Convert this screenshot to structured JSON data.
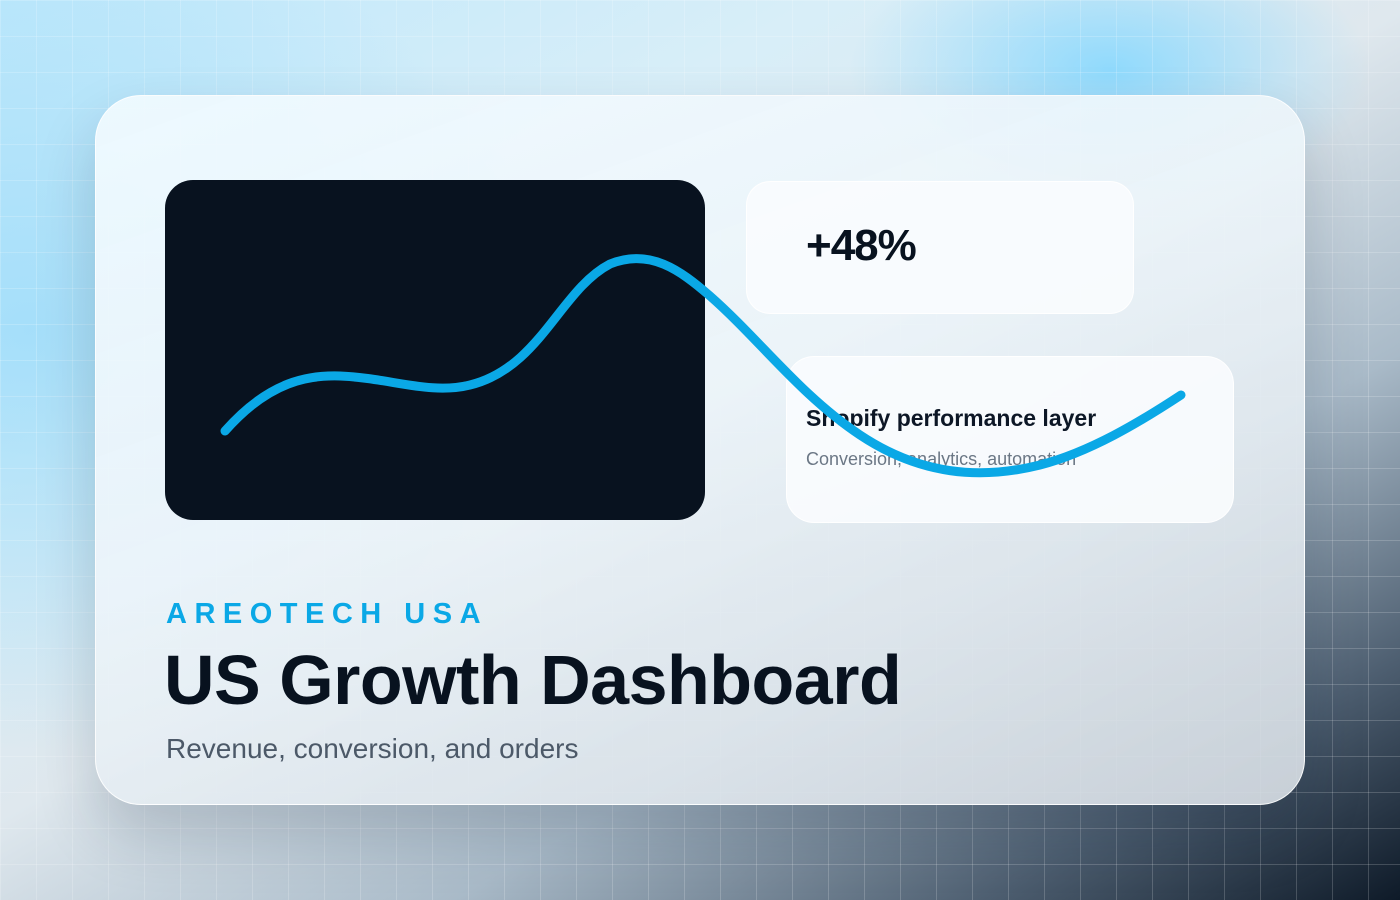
{
  "stat": {
    "value": "+48%"
  },
  "info_card": {
    "title": "Shopify performance layer",
    "subtitle": "Conversion, analytics, automation"
  },
  "brand": "AREOTECH USA",
  "title": "US Growth Dashboard",
  "subtitle": "Revenue, conversion, and orders",
  "colors": {
    "accent": "#0aa8e6",
    "dark_panel": "#08121f",
    "title_text": "#08121f",
    "subtitle_text": "#4c5968"
  },
  "icons": {
    "trend_line": "trend-line-icon"
  }
}
